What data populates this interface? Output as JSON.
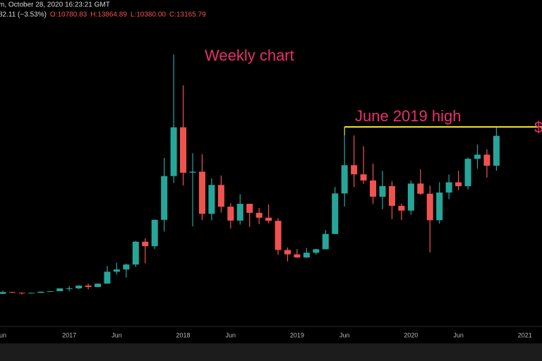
{
  "chart_data": {
    "type": "candlestick",
    "header": {
      "line1": "m, October 28, 2020 16:23:21 GMT",
      "line2": [
        "82.11 (−3.53%)",
        "O:10780.83",
        "H:13864.89",
        "L:10380.00",
        "C:13165.79"
      ]
    },
    "title": "Weekly chart",
    "annotation": {
      "text": "June 2019 high",
      "value": 13880,
      "from": "2019-06",
      "color": "#f2e21e"
    },
    "edge_label": "$",
    "label_color": "#e8306c",
    "up_color": "#26a69a",
    "down_color": "#ef5350",
    "ylim": [
      -2190,
      22340
    ],
    "categories": [
      "2016-06",
      "2016-07",
      "2016-08",
      "2016-09",
      "2016-10",
      "2016-11",
      "2016-12",
      "2017-01",
      "2017-02",
      "2017-03",
      "2017-04",
      "2017-05",
      "2017-06",
      "2017-07",
      "2017-08",
      "2017-09",
      "2017-10",
      "2017-11",
      "2017-12",
      "2018-01",
      "2018-02",
      "2018-03",
      "2018-04",
      "2018-05",
      "2018-06",
      "2018-07",
      "2018-08",
      "2018-09",
      "2018-10",
      "2018-11",
      "2018-12",
      "2019-01",
      "2019-02",
      "2019-03",
      "2019-04",
      "2019-05",
      "2019-06",
      "2019-07",
      "2019-08",
      "2019-09",
      "2019-10",
      "2019-11",
      "2019-12",
      "2020-01",
      "2020-02",
      "2020-03",
      "2020-04",
      "2020-05",
      "2020-06",
      "2020-07",
      "2020-08",
      "2020-09",
      "2020-10"
    ],
    "open": [
      531,
      673,
      624,
      575,
      609,
      701,
      742,
      966,
      970,
      1190,
      1080,
      1348,
      2300,
      2480,
      2875,
      4700,
      4340,
      6450,
      9950,
      13850,
      10220,
      10300,
      6930,
      9240,
      7500,
      6390,
      7730,
      7010,
      6620,
      6370,
      4040,
      3690,
      3440,
      3820,
      4100,
      5320,
      8560,
      10820,
      10090,
      9600,
      8300,
      9150,
      7570,
      7190,
      9350,
      8540,
      6420,
      8630,
      9450,
      9140,
      11330,
      11660,
      10780
    ],
    "high": [
      780,
      704,
      626,
      628,
      716,
      756,
      979,
      1153,
      1210,
      1350,
      1350,
      2763,
      2999,
      2950,
      4760,
      4980,
      6470,
      11400,
      19666,
      17200,
      11780,
      11700,
      9770,
      9990,
      7780,
      8500,
      7740,
      7400,
      7680,
      6590,
      4240,
      4110,
      4200,
      4140,
      5640,
      9080,
      13880,
      13200,
      12340,
      10950,
      10370,
      9530,
      7750,
      9580,
      10500,
      9190,
      9460,
      10080,
      10380,
      11450,
      12470,
      12090,
      13865
    ],
    "low": [
      510,
      604,
      480,
      570,
      604,
      680,
      741,
      752,
      917,
      891,
      1060,
      1348,
      2076,
      1830,
      2675,
      2970,
      4110,
      5510,
      9400,
      9200,
      5920,
      6420,
      6420,
      7030,
      5750,
      6070,
      5880,
      6110,
      6170,
      3650,
      3120,
      3400,
      3400,
      3670,
      4080,
      5320,
      7510,
      9070,
      9320,
      7710,
      7300,
      6510,
      6430,
      6850,
      8460,
      3850,
      6150,
      8100,
      8820,
      8890,
      10540,
      9820,
      10380
    ],
    "close": [
      673,
      624,
      575,
      609,
      701,
      742,
      966,
      970,
      1190,
      1080,
      1348,
      2300,
      2480,
      2875,
      4700,
      4340,
      6450,
      9950,
      13850,
      10220,
      10300,
      6930,
      9240,
      7500,
      6390,
      7730,
      7010,
      6620,
      6370,
      4040,
      3690,
      3440,
      3820,
      4100,
      5320,
      8560,
      10820,
      10090,
      9600,
      8300,
      9150,
      7570,
      7190,
      9350,
      8540,
      6420,
      8630,
      9450,
      9140,
      11330,
      11660,
      10780,
      13166
    ],
    "xticks": [
      {
        "value": "2016-06",
        "label": "un"
      },
      {
        "value": "2017-01",
        "label": "2017"
      },
      {
        "value": "2017-06",
        "label": "Jun"
      },
      {
        "value": "2018-01",
        "label": "2018"
      },
      {
        "value": "2018-06",
        "label": "Jun"
      },
      {
        "value": "2019-01",
        "label": "2019"
      },
      {
        "value": "2019-06",
        "label": "Jun"
      },
      {
        "value": "2020-01",
        "label": "2020"
      },
      {
        "value": "2020-06",
        "label": "Jun"
      },
      {
        "value": "2021-01",
        "label": "2021"
      }
    ]
  }
}
